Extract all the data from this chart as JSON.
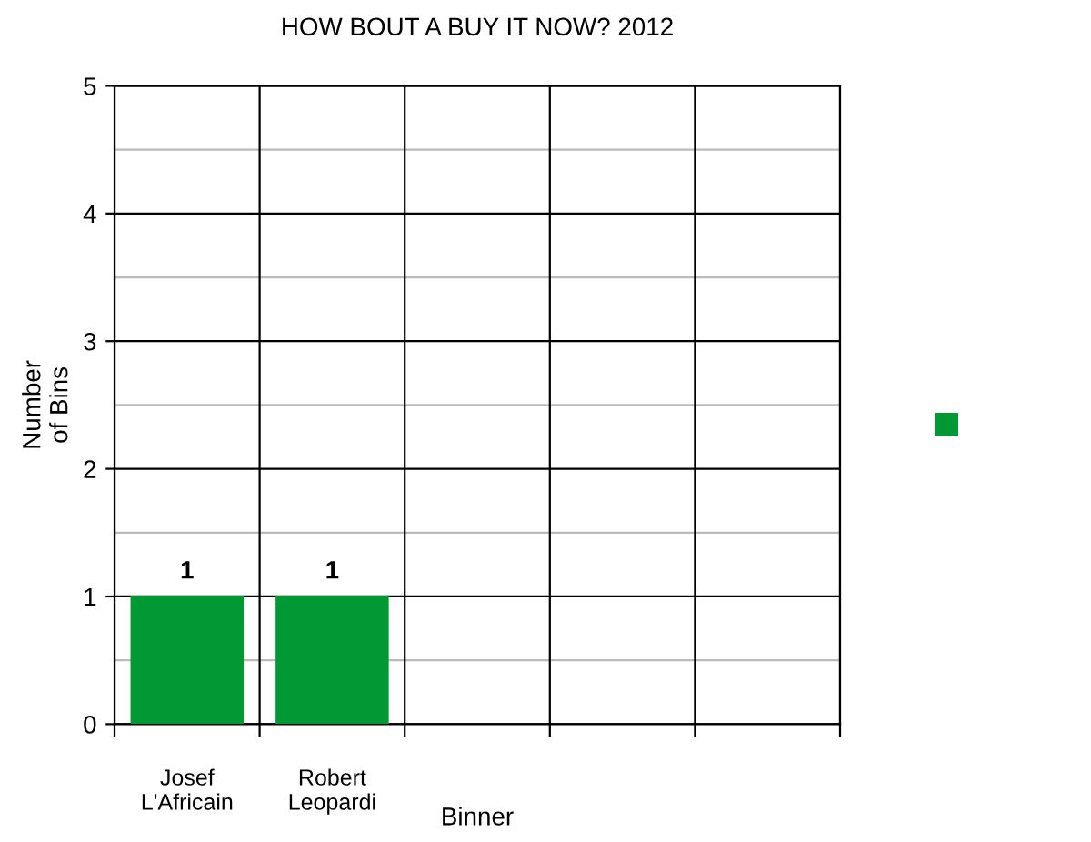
{
  "chart_data": {
    "type": "bar",
    "title": "HOW BOUT A BUY IT NOW? 2012",
    "xlabel": "Binner",
    "ylabel": "Number\nof Bins",
    "categories": [
      "Josef\nL'Africain",
      "Robert\nLeopardi",
      null,
      null,
      null
    ],
    "series": [
      {
        "color": "#009933",
        "values": [
          1,
          1,
          null,
          null,
          null
        ],
        "value_labels": [
          "1",
          "1",
          null,
          null,
          null
        ]
      }
    ],
    "ylim": [
      0,
      5
    ],
    "yticks": [
      0,
      1,
      2,
      3,
      4,
      5
    ],
    "grid": true
  }
}
